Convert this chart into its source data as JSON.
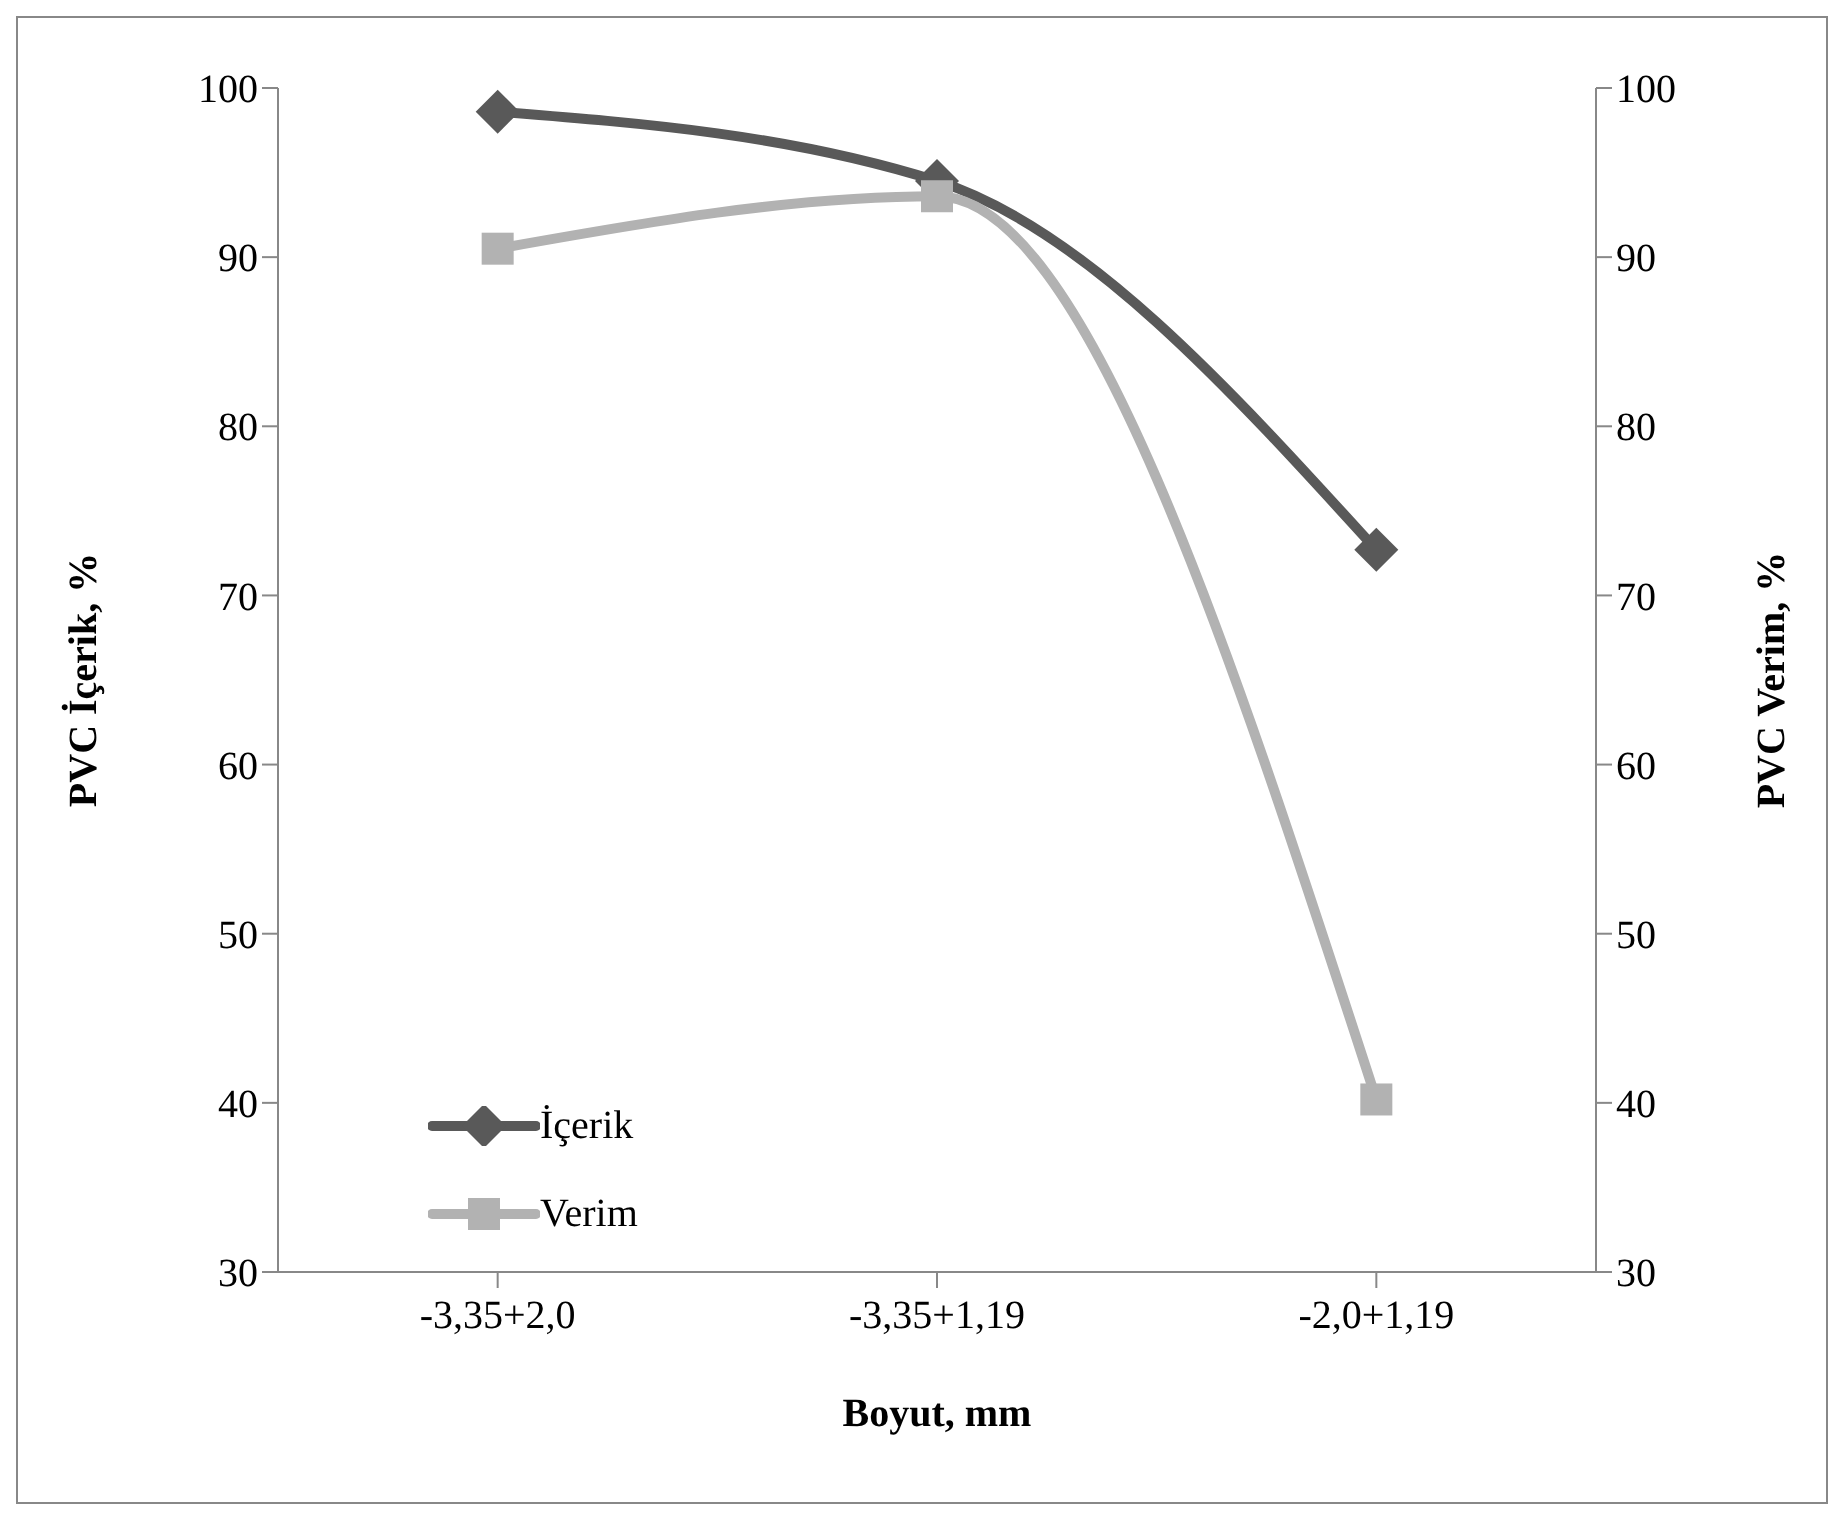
{
  "chart_data": {
    "type": "line",
    "xlabel": "Boyut, mm",
    "ylabel": "PVC İçerik, %",
    "y2label": "PVC Verim, %",
    "categories": [
      "-3,35+2,0",
      "-3,35+1,19",
      "-2,0+1,19"
    ],
    "series": [
      {
        "name": "İçerik",
        "color": "#595959",
        "values": [
          98.6,
          94.5,
          72.7
        ],
        "marker": "diamond"
      },
      {
        "name": "Verim",
        "color": "#b2b2b2",
        "values": [
          90.5,
          93.6,
          40.2
        ],
        "marker": "square"
      }
    ],
    "ylim": [
      30,
      100
    ],
    "yticks": [
      30,
      40,
      50,
      60,
      70,
      80,
      90,
      100
    ],
    "y2lim": [
      30,
      100
    ],
    "y2ticks": [
      30,
      40,
      50,
      60,
      70,
      80,
      90,
      100
    ],
    "grid": false,
    "legend": "bottom left",
    "line_style": "solid"
  }
}
